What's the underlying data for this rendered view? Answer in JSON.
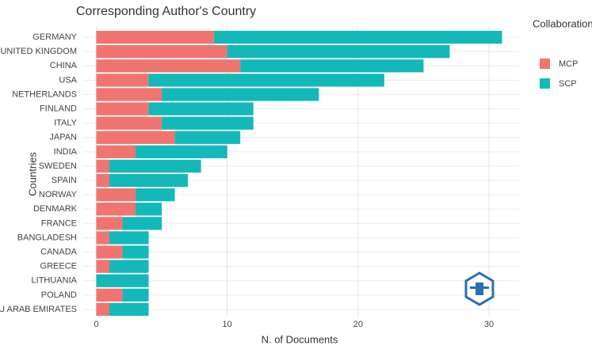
{
  "chart_data": {
    "type": "stacked_bar_horizontal",
    "title": "Corresponding Author's Country",
    "x_label": "N. of Documents",
    "y_label": "Countries",
    "legend_title": "Collaboration",
    "categories": [
      "GERMANY",
      "UNITED KINGDOM",
      "CHINA",
      "USA",
      "NETHERLANDS",
      "FINLAND",
      "ITALY",
      "JAPAN",
      "INDIA",
      "SWEDEN",
      "SPAIN",
      "NORWAY",
      "DENMARK",
      "FRANCE",
      "BANGLADESH",
      "CANADA",
      "GREECE",
      "LITHUANIA",
      "POLAND",
      "U ARAB EMIRATES"
    ],
    "series": [
      {
        "name": "MCP",
        "color": "#f07470",
        "values": [
          9,
          10,
          11,
          4,
          5,
          4,
          5,
          6,
          3,
          1,
          1,
          3,
          3,
          2,
          1,
          2,
          1,
          0,
          2,
          1
        ]
      },
      {
        "name": "SCP",
        "color": "#14b8b8",
        "values": [
          22,
          17,
          14,
          18,
          12,
          8,
          7,
          5,
          7,
          7,
          6,
          3,
          2,
          3,
          3,
          2,
          3,
          4,
          2,
          3
        ]
      }
    ],
    "xlim": [
      -1,
      32.3
    ],
    "xticks": [
      0,
      10,
      20,
      30
    ],
    "grid": true
  }
}
